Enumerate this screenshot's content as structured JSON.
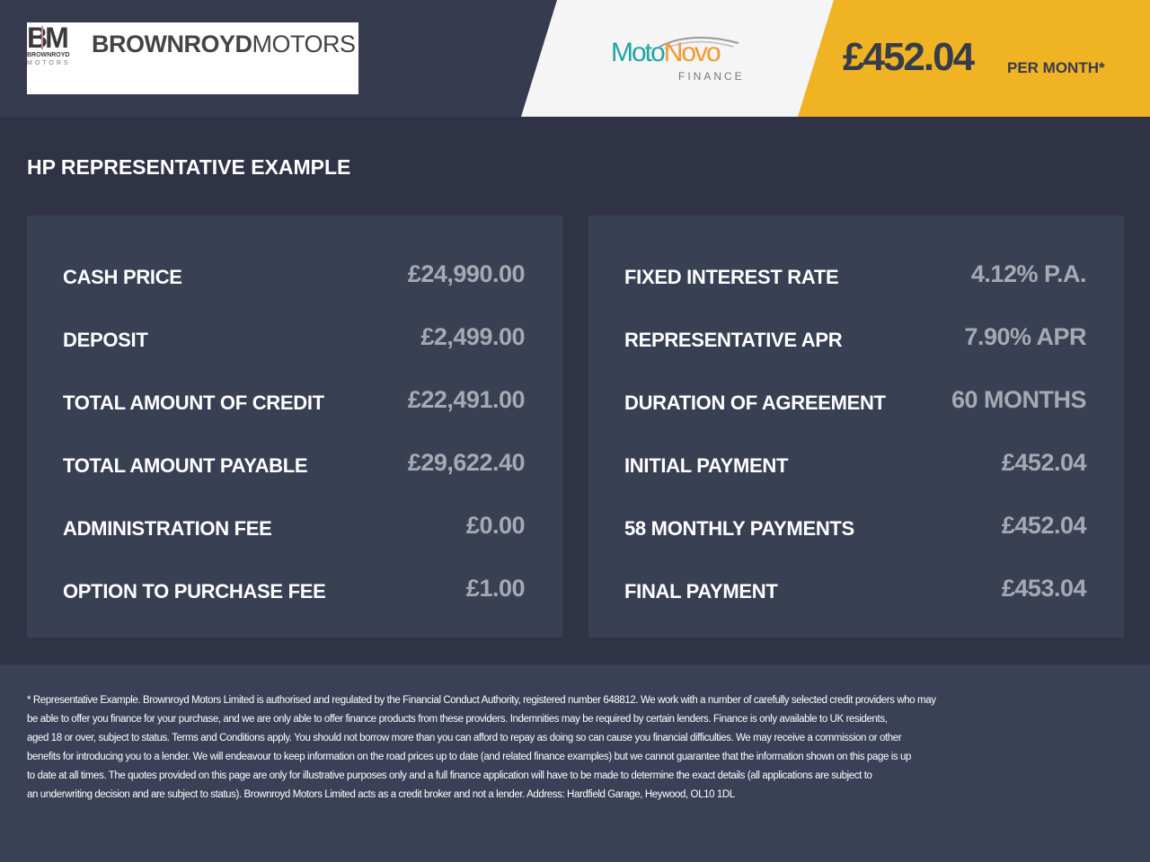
{
  "header": {
    "dealer_logo": {
      "monogram": "BM",
      "sub1": "BROWNROYD",
      "sub2": "MOTORS",
      "name_bold": "BROWNROYD",
      "name_light": "MOTORS"
    },
    "finance_logo": {
      "part1": "Moto",
      "part2": "Novo",
      "sub": "FINANCE",
      "colors": {
        "teal": "#1fa5a6",
        "orange": "#f29a2e"
      }
    },
    "monthly_price": "£452.04",
    "per_month_label": "PER MONTH*",
    "accent_color": "#f0b323"
  },
  "section_title": "HP REPRESENTATIVE EXAMPLE",
  "left_table": [
    {
      "label": "CASH PRICE",
      "value": "£24,990.00"
    },
    {
      "label": "DEPOSIT",
      "value": "£2,499.00"
    },
    {
      "label": "TOTAL AMOUNT OF CREDIT",
      "value": "£22,491.00"
    },
    {
      "label": "TOTAL AMOUNT PAYABLE",
      "value": "£29,622.40"
    },
    {
      "label": "ADMINISTRATION FEE",
      "value": "£0.00"
    },
    {
      "label": "OPTION TO PURCHASE FEE",
      "value": "£1.00"
    }
  ],
  "right_table": [
    {
      "label": "FIXED INTEREST RATE",
      "value": "4.12% P.A."
    },
    {
      "label": "REPRESENTATIVE APR",
      "value": "7.90% APR"
    },
    {
      "label": "DURATION OF AGREEMENT",
      "value": "60 MONTHS"
    },
    {
      "label": "INITIAL PAYMENT",
      "value": "£452.04"
    },
    {
      "label": "58 MONTHLY PAYMENTS",
      "value": "£452.04"
    },
    {
      "label": "FINAL PAYMENT",
      "value": "£453.04"
    }
  ],
  "disclaimer_lines": [
    "* Representative Example. Brownroyd Motors Limited is authorised and regulated by the Financial Conduct Authority, registered number 648812. We work with a number of carefully selected credit providers who may",
    "be able to offer you finance for your purchase, and we are only able to offer finance products from these providers. Indemnities may be required by certain lenders. Finance is only available to UK residents,",
    "aged 18 or over, subject to status. Terms and Conditions apply. You should not borrow more than you can afford to repay as doing so can cause you financial difficulties. We may receive a commission or other",
    "benefits for introducing you to a lender. We will endeavour to keep information on the road prices up to date (and related finance examples) but we cannot guarantee that the information shown on this page is up",
    "to date at all times. The quotes provided on this page are only for illustrative purposes only and a full finance application will have to be made to determine the exact details (all applications are subject to",
    "an underwriting decision and are subject to status). Brownroyd Motors Limited acts as a credit broker and not a lender. Address: Hardfield Garage, Heywood, OL10 1DL"
  ]
}
